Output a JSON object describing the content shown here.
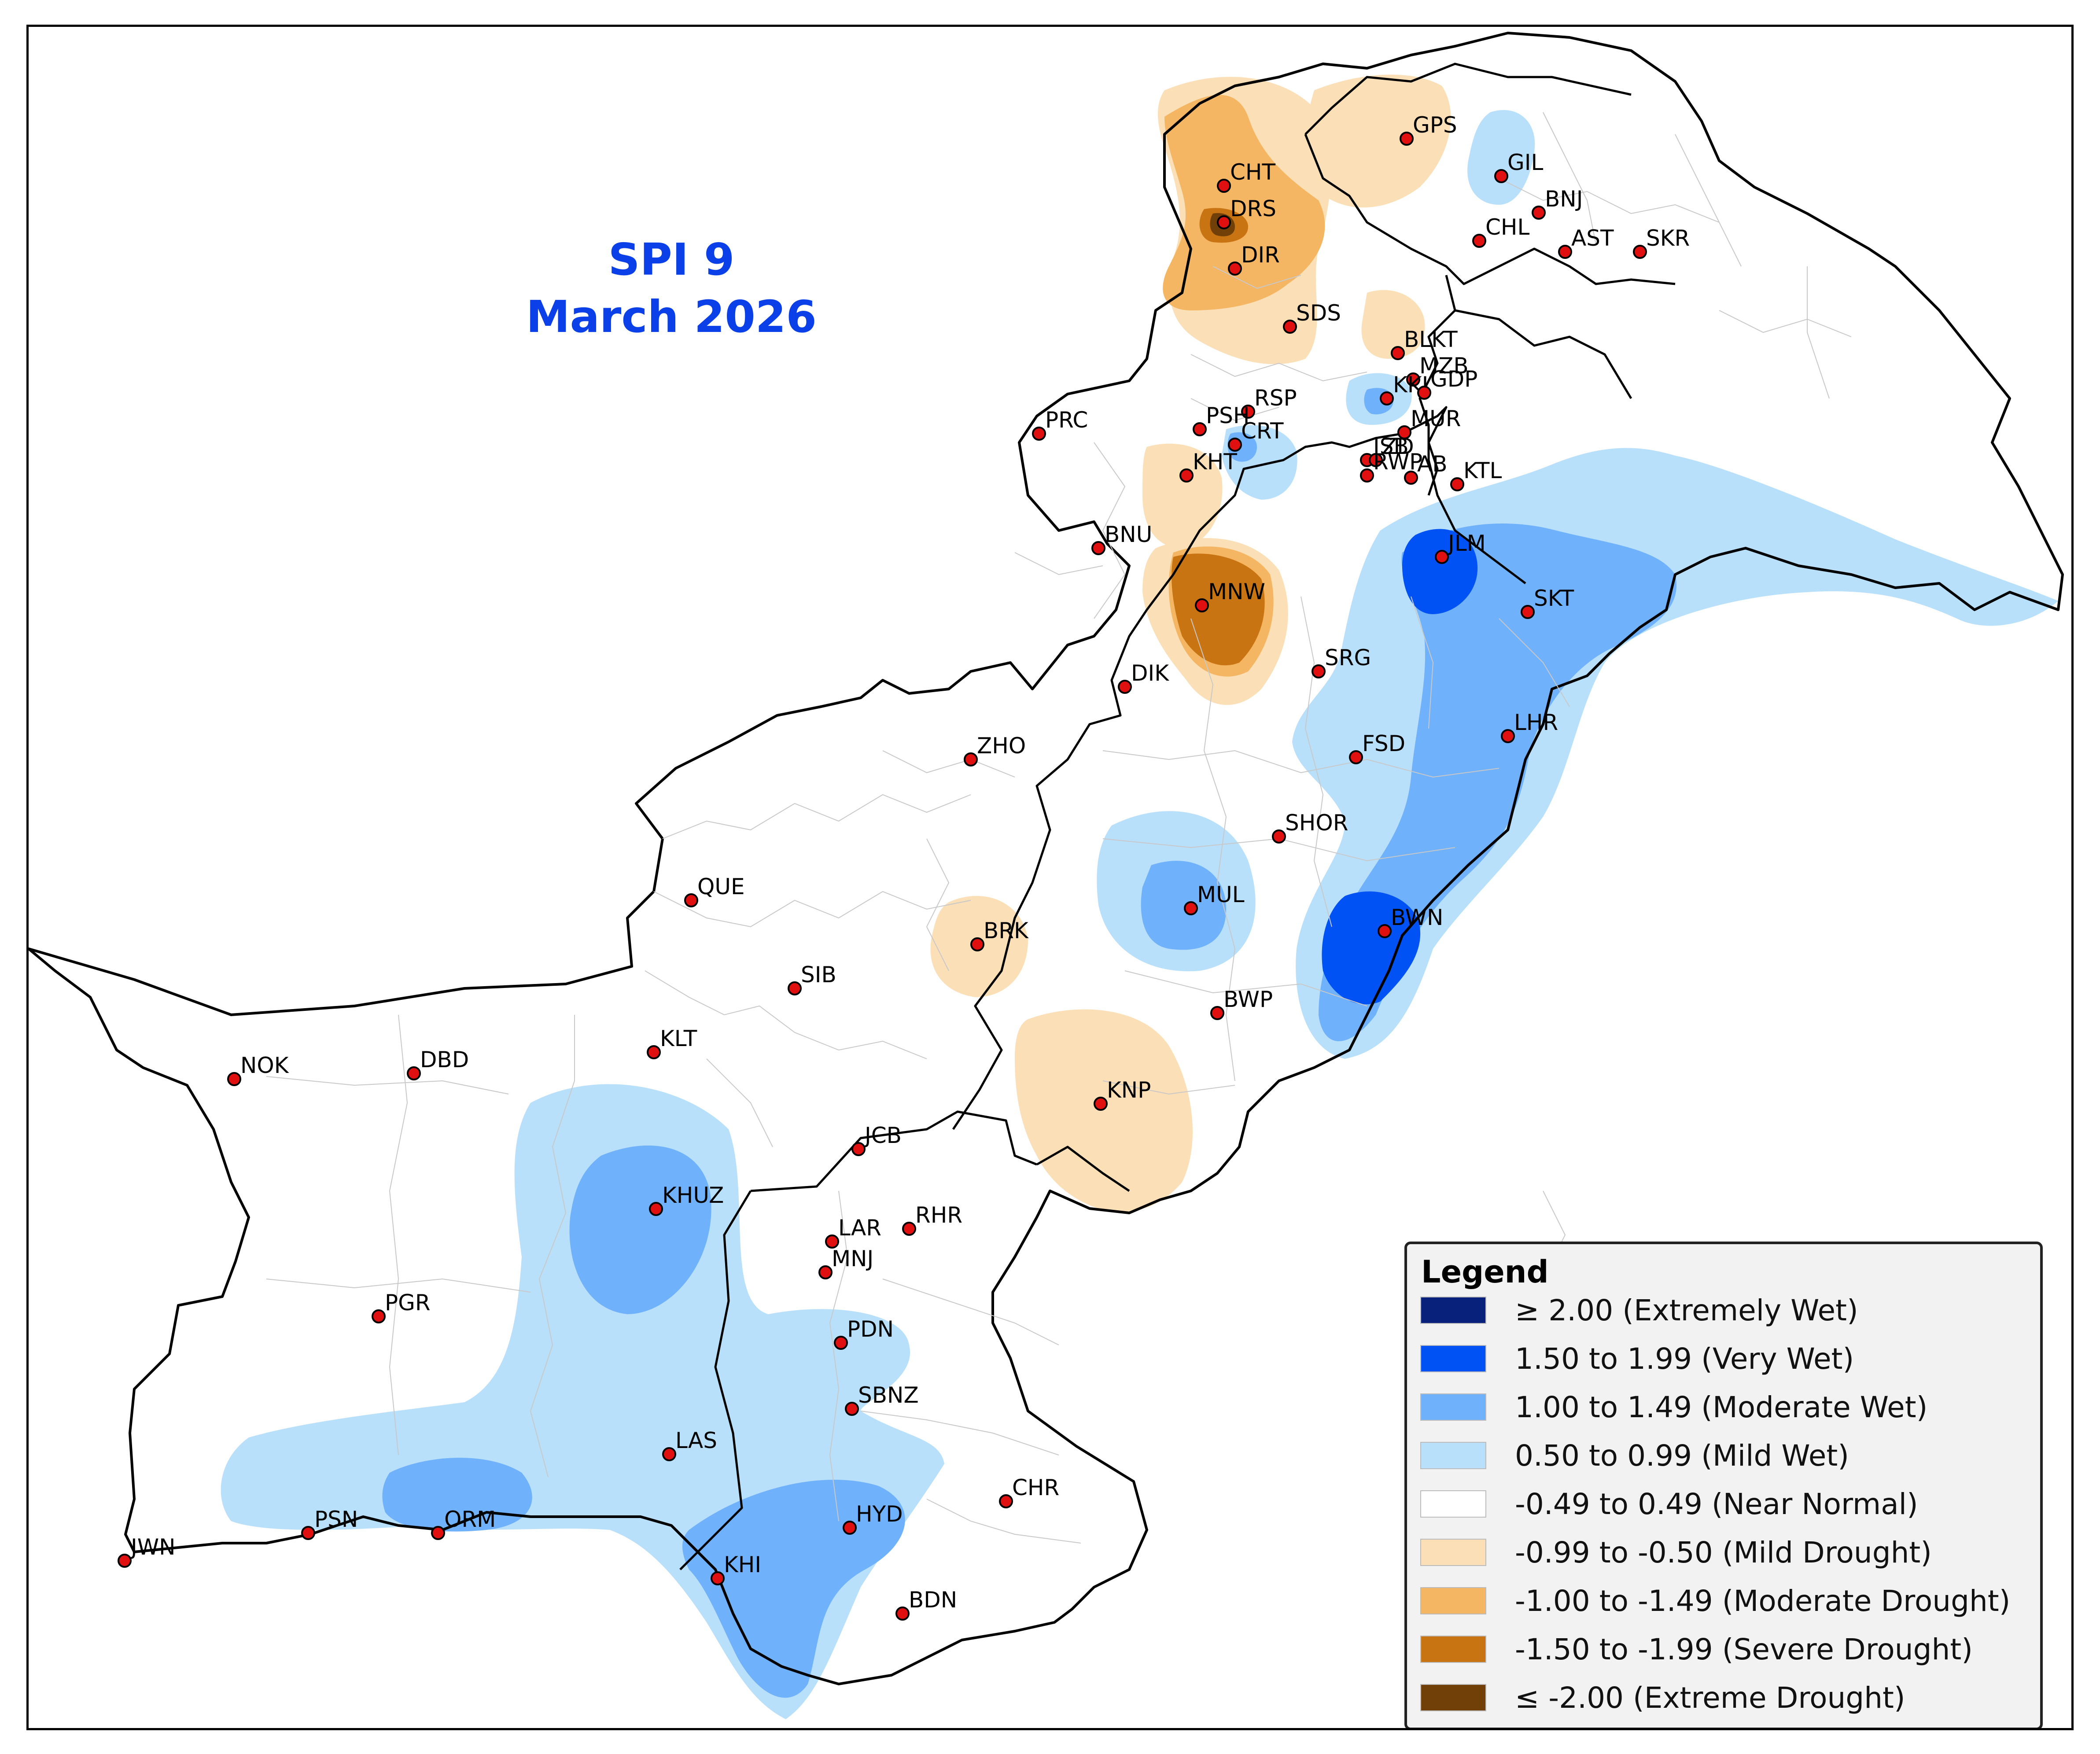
{
  "title": {
    "line1": "SPI 9",
    "line2": "March 2026"
  },
  "legend": {
    "title": "Legend",
    "items": [
      {
        "label": "≥ 2.00 (Extremely Wet)",
        "color": "#08217a"
      },
      {
        "label": "1.50 to 1.99 (Very Wet)",
        "color": "#0052f5"
      },
      {
        "label": "1.00 to 1.49 (Moderate Wet)",
        "color": "#6fb1fb"
      },
      {
        "label": "0.50 to 0.99 (Mild Wet)",
        "color": "#b9e0fa"
      },
      {
        "label": "-0.49 to 0.49 (Near Normal)",
        "color": "#ffffff"
      },
      {
        "label": "-0.99 to -0.50 (Mild Drought)",
        "color": "#fbdfb7"
      },
      {
        "label": "-1.00 to -1.49 (Moderate Drought)",
        "color": "#f4b662"
      },
      {
        "label": "-1.50 to -1.99 (Severe Drought)",
        "color": "#c97412"
      },
      {
        "label": "≤ -2.00 (Extreme Drought)",
        "color": "#714008"
      }
    ]
  },
  "stations": [
    "CHT",
    "DRS",
    "DIR",
    "GPS",
    "GIL",
    "BNJ",
    "CHL",
    "AST",
    "SKR",
    "SDS",
    "BLKT",
    "MZB",
    "KKI",
    "GDP",
    "RSP",
    "PSH",
    "CRT",
    "MUR",
    "PRC",
    "ISB",
    "ZD",
    "KHT",
    "RWP",
    "AB",
    "KTL",
    "JLM",
    "BNU",
    "SKT",
    "MNW",
    "SRG",
    "DIK",
    "LHR",
    "FSD",
    "ZHO",
    "SHOR",
    "QUE",
    "MUL",
    "BWN",
    "BRK",
    "SIB",
    "BWP",
    "KLT",
    "NOK",
    "DBD",
    "KNP",
    "JCB",
    "KHUZ",
    "LAR",
    "RHR",
    "MNJ",
    "PGR",
    "PDN",
    "SBNZ",
    "LAS",
    "CHR",
    "PSN",
    "ORM",
    "HYD",
    "JWN",
    "KHI",
    "BDN"
  ]
}
